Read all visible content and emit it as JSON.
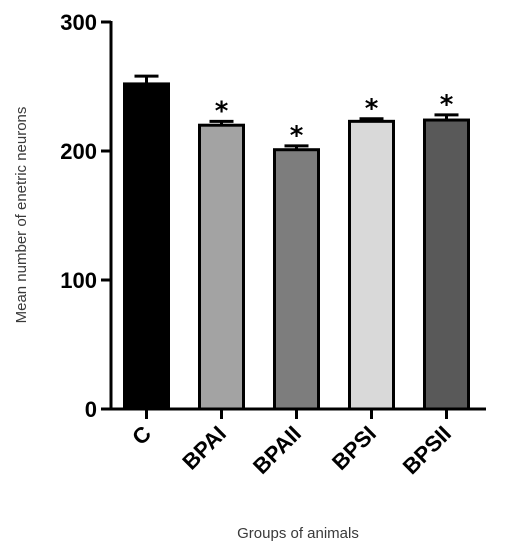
{
  "chart_data": {
    "type": "bar",
    "categories": [
      "C",
      "BPAI",
      "BPAII",
      "BPSI",
      "BPSII"
    ],
    "values": [
      252,
      220,
      201,
      223,
      224
    ],
    "errors": [
      6,
      3,
      3,
      2,
      4
    ],
    "significance": [
      "",
      "*",
      "*",
      "*",
      "*"
    ],
    "colors": [
      "#000000",
      "#a3a3a3",
      "#7d7d7d",
      "#d9d9d9",
      "#595959"
    ],
    "ylabel": "Mean number of enetric neurons",
    "xlabel": "Groups of animals",
    "ylim": [
      0,
      300
    ],
    "yticks": [
      0,
      100,
      200,
      300
    ],
    "grid": false
  }
}
